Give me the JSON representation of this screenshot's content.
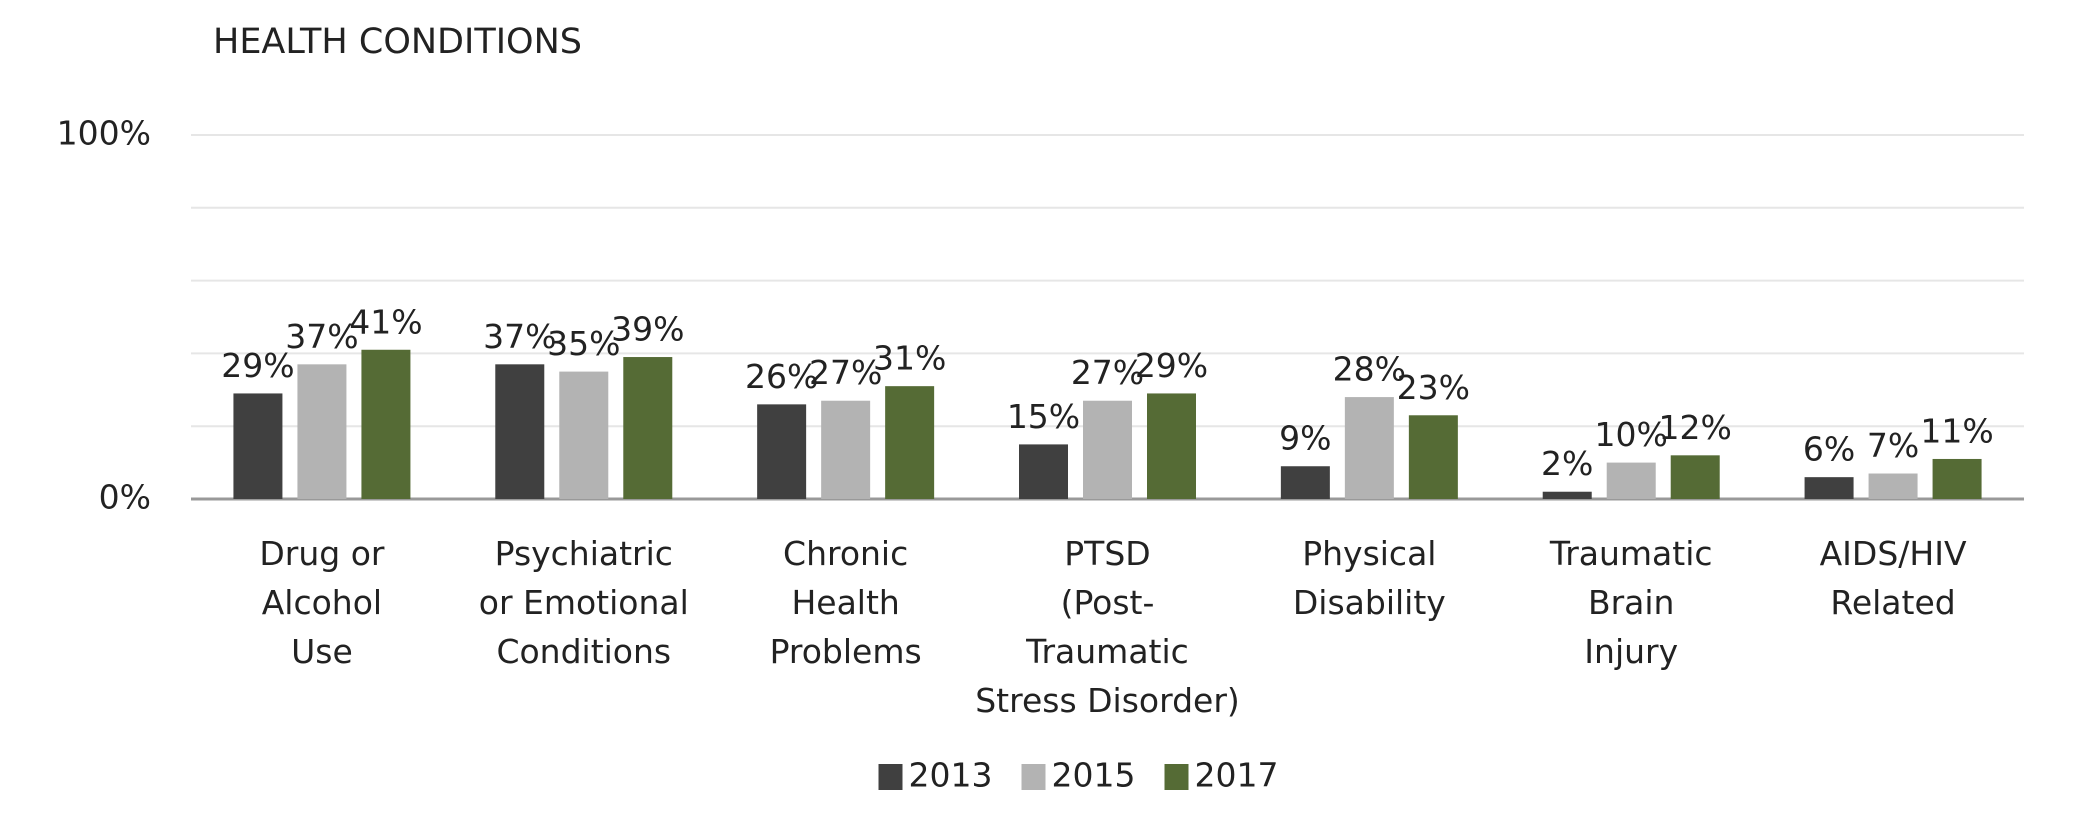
{
  "chart_data": {
    "type": "bar",
    "title": "HEALTH CONDITIONS",
    "categories": [
      "Drug or\nAlcohol\nUse",
      "Psychiatric\nor Emotional\nConditions",
      "Chronic\nHealth\nProblems",
      "PTSD\n(Post-\nTraumatic\nStress Disorder)",
      "Physical\nDisability",
      "Traumatic\nBrain\nInjury",
      "AIDS/HIV\nRelated"
    ],
    "series": [
      {
        "name": "2013",
        "color": "#404040",
        "values": [
          29,
          37,
          26,
          15,
          9,
          2,
          6
        ],
        "value_labels": [
          "29%",
          "37%",
          "26%",
          "15%",
          "9%",
          "2%",
          "6%"
        ]
      },
      {
        "name": "2015",
        "color": "#b3b3b3",
        "values": [
          37,
          35,
          27,
          27,
          28,
          10,
          7
        ],
        "value_labels": [
          "37%",
          "35%",
          "27%",
          "27%",
          "28%",
          "10%",
          "7%"
        ]
      },
      {
        "name": "2017",
        "color": "#556b35",
        "values": [
          41,
          39,
          31,
          29,
          23,
          12,
          11
        ],
        "value_labels": [
          "41%",
          "39%",
          "31%",
          "29%",
          "23%",
          "12%",
          "11%"
        ]
      }
    ],
    "ylim": [
      0,
      100
    ],
    "yticks": [
      {
        "value": 0,
        "label": "0%"
      },
      {
        "value": 100,
        "label": "100%"
      }
    ],
    "minor_yticks": [
      20,
      40,
      60,
      80
    ],
    "grid": true,
    "legend": "bottom"
  }
}
